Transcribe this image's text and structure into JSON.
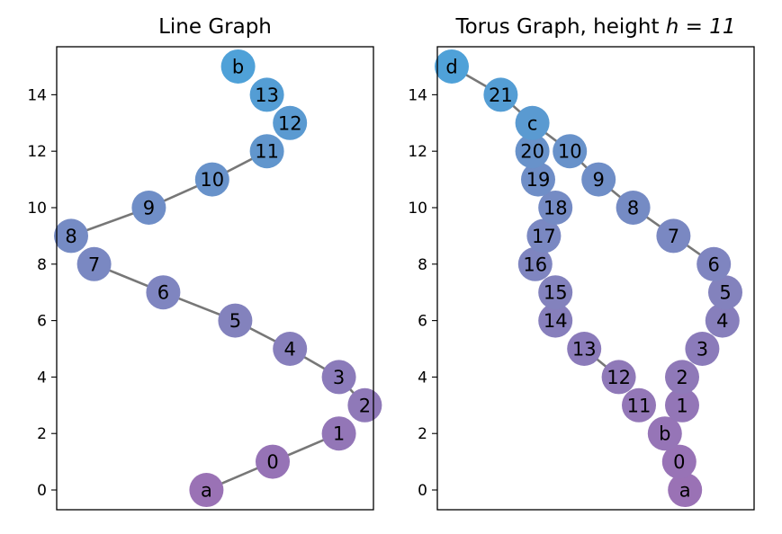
{
  "chart_data": [
    {
      "type": "graph",
      "title": "Line Graph",
      "title_suffix": "",
      "x_ticks_shown": false,
      "yticks": [
        0,
        2,
        4,
        6,
        8,
        10,
        12,
        14
      ],
      "ylim": [
        -0.7,
        15.7
      ],
      "xlim": [
        -0.3,
        10.7
      ],
      "nodes": [
        {
          "label": "a",
          "x": 4.9,
          "y": 0,
          "color": "#9a72b5"
        },
        {
          "label": "0",
          "x": 7.2,
          "y": 1,
          "color": "#9673b6"
        },
        {
          "label": "1",
          "x": 9.5,
          "y": 2,
          "color": "#9376b7"
        },
        {
          "label": "2",
          "x": 10.4,
          "y": 3,
          "color": "#8f79b8"
        },
        {
          "label": "3",
          "x": 9.5,
          "y": 4,
          "color": "#8b7bba"
        },
        {
          "label": "4",
          "x": 7.8,
          "y": 5,
          "color": "#877fbc"
        },
        {
          "label": "5",
          "x": 5.9,
          "y": 6,
          "color": "#8382bd"
        },
        {
          "label": "6",
          "x": 3.4,
          "y": 7,
          "color": "#7f85c0"
        },
        {
          "label": "7",
          "x": 1.0,
          "y": 8,
          "color": "#7a88c2"
        },
        {
          "label": "8",
          "x": 0.2,
          "y": 9,
          "color": "#758bc4"
        },
        {
          "label": "9",
          "x": 2.9,
          "y": 10,
          "color": "#6f8ec7"
        },
        {
          "label": "10",
          "x": 5.1,
          "y": 11,
          "color": "#6892ca"
        },
        {
          "label": "11",
          "x": 7.0,
          "y": 12,
          "color": "#6196cd"
        },
        {
          "label": "12",
          "x": 7.8,
          "y": 13,
          "color": "#5a9ad1"
        },
        {
          "label": "13",
          "x": 7.0,
          "y": 14,
          "color": "#549dd4"
        },
        {
          "label": "b",
          "x": 6.0,
          "y": 15,
          "color": "#4fa1d8"
        }
      ],
      "edges": [
        [
          "a",
          "0"
        ],
        [
          "0",
          "1"
        ],
        [
          "2",
          "3"
        ],
        [
          "3",
          "4"
        ],
        [
          "4",
          "5"
        ],
        [
          "5",
          "6"
        ],
        [
          "6",
          "7"
        ],
        [
          "8",
          "9"
        ],
        [
          "9",
          "10"
        ],
        [
          "10",
          "11"
        ]
      ]
    },
    {
      "type": "graph",
      "title": "Torus Graph, height ",
      "title_suffix": "h = 11",
      "x_ticks_shown": false,
      "yticks": [
        0,
        2,
        4,
        6,
        8,
        10,
        12,
        14
      ],
      "ylim": [
        -0.7,
        15.7
      ],
      "xlim": [
        -0.3,
        10.7
      ],
      "nodes": [
        {
          "label": "a",
          "x": 8.3,
          "y": 0,
          "color": "#9a72b5"
        },
        {
          "label": "0",
          "x": 8.1,
          "y": 1,
          "color": "#9873b6"
        },
        {
          "label": "b",
          "x": 7.6,
          "y": 2,
          "color": "#9675b7"
        },
        {
          "label": "1",
          "x": 8.2,
          "y": 3,
          "color": "#9376b7"
        },
        {
          "label": "11",
          "x": 6.7,
          "y": 3,
          "color": "#9377b7"
        },
        {
          "label": "2",
          "x": 8.2,
          "y": 4,
          "color": "#8f79b8"
        },
        {
          "label": "12",
          "x": 6.0,
          "y": 4,
          "color": "#8f79b8"
        },
        {
          "label": "3",
          "x": 8.9,
          "y": 5,
          "color": "#8b7bba"
        },
        {
          "label": "13",
          "x": 4.8,
          "y": 5,
          "color": "#8b7bba"
        },
        {
          "label": "4",
          "x": 9.6,
          "y": 6,
          "color": "#877fbc"
        },
        {
          "label": "14",
          "x": 3.8,
          "y": 6,
          "color": "#877fbc"
        },
        {
          "label": "5",
          "x": 9.7,
          "y": 7,
          "color": "#8382bd"
        },
        {
          "label": "15",
          "x": 3.8,
          "y": 7,
          "color": "#8382bd"
        },
        {
          "label": "6",
          "x": 9.3,
          "y": 8,
          "color": "#7f85c0"
        },
        {
          "label": "16",
          "x": 3.1,
          "y": 8,
          "color": "#7f85c0"
        },
        {
          "label": "7",
          "x": 7.9,
          "y": 9,
          "color": "#7a88c2"
        },
        {
          "label": "17",
          "x": 3.4,
          "y": 9,
          "color": "#7a88c2"
        },
        {
          "label": "8",
          "x": 6.5,
          "y": 10,
          "color": "#758bc4"
        },
        {
          "label": "18",
          "x": 3.8,
          "y": 10,
          "color": "#758bc4"
        },
        {
          "label": "9",
          "x": 5.3,
          "y": 11,
          "color": "#6f8ec7"
        },
        {
          "label": "19",
          "x": 3.2,
          "y": 11,
          "color": "#6f8ec7"
        },
        {
          "label": "10",
          "x": 4.3,
          "y": 12,
          "color": "#6892ca"
        },
        {
          "label": "20",
          "x": 3.0,
          "y": 12,
          "color": "#6892ca"
        },
        {
          "label": "c",
          "x": 3.0,
          "y": 13,
          "color": "#5a9ad1"
        },
        {
          "label": "21",
          "x": 1.9,
          "y": 14,
          "color": "#549dd4"
        },
        {
          "label": "d",
          "x": 0.2,
          "y": 15,
          "color": "#4fa1d8"
        }
      ],
      "edges": [
        [
          "d",
          "21"
        ],
        [
          "21",
          "c"
        ],
        [
          "c",
          "10"
        ],
        [
          "10",
          "9"
        ],
        [
          "9",
          "8"
        ],
        [
          "8",
          "7"
        ],
        [
          "7",
          "6"
        ],
        [
          "6",
          "5"
        ],
        [
          "5",
          "4"
        ],
        [
          "12",
          "13"
        ],
        [
          "b",
          "0"
        ]
      ]
    }
  ]
}
